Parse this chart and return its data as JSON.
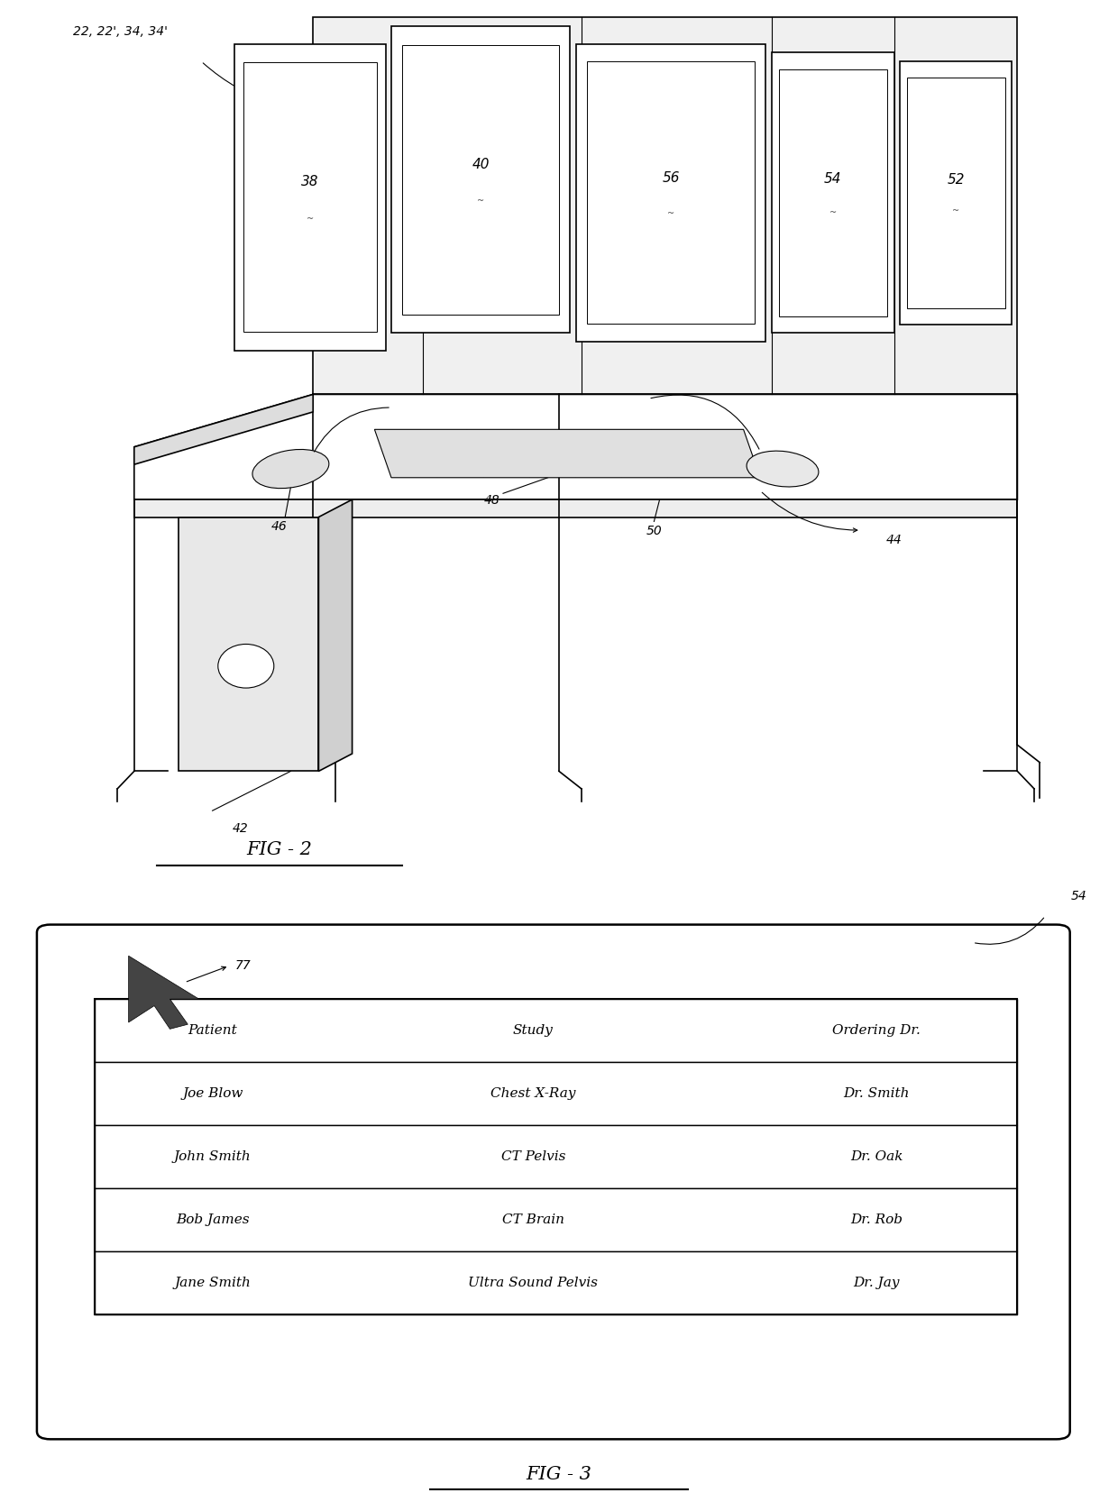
{
  "bg_color": "#ffffff",
  "fig_width": 12.4,
  "fig_height": 16.76,
  "fig2_label": "FIG - 2",
  "fig3_label": "FIG - 3",
  "monitor_labels": [
    "38",
    "40",
    "56",
    "54",
    "52"
  ],
  "desk_label": "44",
  "tower_label": "42",
  "keyboard_label": "48",
  "mouse_label": "46",
  "mouse2_label": "50",
  "top_label": "22, 22', 34, 34'",
  "table_headers": [
    "Patient",
    "Study",
    "Ordering Dr."
  ],
  "table_rows": [
    [
      "Joe Blow",
      "Chest X-Ray",
      "Dr. Smith"
    ],
    [
      "John Smith",
      "CT Pelvis",
      "Dr. Oak"
    ],
    [
      "Bob James",
      "CT Brain",
      "Dr. Rob"
    ],
    [
      "Jane Smith",
      "Ultra Sound Pelvis",
      "Dr. Jay"
    ]
  ],
  "fig3_box_label": "54",
  "fig3_arrow_label": "77",
  "font_size_labels": 10,
  "font_size_table": 11,
  "font_size_fig": 15
}
